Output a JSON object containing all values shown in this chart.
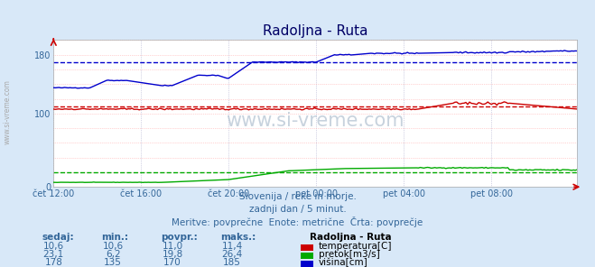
{
  "title": "Radoljna - Ruta",
  "background_color": "#d8e8f8",
  "plot_bg_color": "#ffffff",
  "xlim": [
    0,
    287
  ],
  "ylim": [
    0,
    200
  ],
  "yticks": [
    0,
    20,
    40,
    60,
    80,
    100,
    120,
    140,
    160,
    180,
    200
  ],
  "xtick_labels": [
    "čet 12:00",
    "čet 16:00",
    "čet 20:00",
    "pet 00:00",
    "pet 04:00",
    "pet 08:00"
  ],
  "xtick_positions": [
    0,
    48,
    96,
    144,
    192,
    240
  ],
  "subtitle1": "Slovenija / reke in morje.",
  "subtitle2": "zadnji dan / 5 minut.",
  "subtitle3": "Meritve: povprečne  Enote: metrične  Črta: povprečje",
  "watermark": "www.si-vreme.com",
  "legend_title": "Radoljna - Ruta",
  "legend_entries": [
    "temperatura[C]",
    "pretok[m3/s]",
    "višina[cm]"
  ],
  "legend_colors": [
    "#cc0000",
    "#00aa00",
    "#0000cc"
  ],
  "table_headers": [
    "sedaj:",
    "min.:",
    "povpr.:",
    "maks.:"
  ],
  "table_data": [
    [
      "10,6",
      "10,6",
      "11,0",
      "11,4"
    ],
    [
      "23,1",
      "6,2",
      "19,8",
      "26,4"
    ],
    [
      "178",
      "135",
      "170",
      "185"
    ]
  ],
  "avg_height": 170,
  "avg_flow": 19.8,
  "avg_temp": 11.0,
  "temp_color": "#cc0000",
  "flow_color": "#00aa00",
  "height_color": "#0000cc",
  "temp_scale": 10.0,
  "sidebar_text": "www.si-vreme.com",
  "hgrid_color": "#ffaaaa",
  "vgrid_color": "#aaaacc",
  "text_color": "#336699"
}
